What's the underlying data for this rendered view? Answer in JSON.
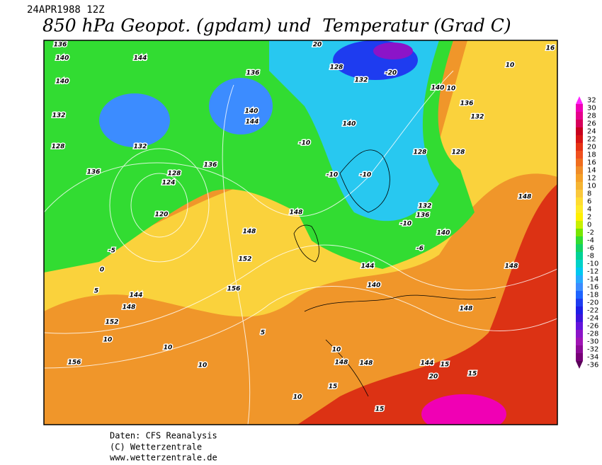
{
  "header": {
    "date": "24APR1988 12Z",
    "title": "850 hPa Geopot. (gpdam) und  Temperatur (Grad C)"
  },
  "colorbar": [
    {
      "value": 32,
      "color": "#ff28ff"
    },
    {
      "value": 30,
      "color": "#f000b4"
    },
    {
      "value": 28,
      "color": "#e6008c"
    },
    {
      "value": 26,
      "color": "#d7005a"
    },
    {
      "value": 24,
      "color": "#c8001e"
    },
    {
      "value": 22,
      "color": "#d71414"
    },
    {
      "value": 20,
      "color": "#e63214"
    },
    {
      "value": 18,
      "color": "#f0501e"
    },
    {
      "value": 16,
      "color": "#f06e1e"
    },
    {
      "value": 14,
      "color": "#f08c28"
    },
    {
      "value": 12,
      "color": "#f5a028"
    },
    {
      "value": 10,
      "color": "#f5b432"
    },
    {
      "value": 8,
      "color": "#fac83c"
    },
    {
      "value": 6,
      "color": "#ffdc32"
    },
    {
      "value": 4,
      "color": "#ffeb28"
    },
    {
      "value": 2,
      "color": "#fff000"
    },
    {
      "value": 0,
      "color": "#c8f000"
    },
    {
      "value": -2,
      "color": "#78e600"
    },
    {
      "value": -4,
      "color": "#32dc32"
    },
    {
      "value": -6,
      "color": "#14d264"
    },
    {
      "value": -8,
      "color": "#00d296"
    },
    {
      "value": -10,
      "color": "#00d2c8"
    },
    {
      "value": -12,
      "color": "#00c8f0"
    },
    {
      "value": -14,
      "color": "#28aaff"
    },
    {
      "value": -16,
      "color": "#3c8cff"
    },
    {
      "value": -18,
      "color": "#1e64ff"
    },
    {
      "value": -20,
      "color": "#1e3cf0"
    },
    {
      "value": -22,
      "color": "#1e1ee6"
    },
    {
      "value": -24,
      "color": "#3c14dc"
    },
    {
      "value": -26,
      "color": "#6414dc"
    },
    {
      "value": -28,
      "color": "#8c14c8"
    },
    {
      "value": -30,
      "color": "#a014b4"
    },
    {
      "value": -32,
      "color": "#8c0a96"
    },
    {
      "value": -34,
      "color": "#780078"
    },
    {
      "value": -36,
      "color": "#5a005a"
    }
  ],
  "map_labels": [
    "136",
    "140",
    "144",
    "140",
    "132",
    "128",
    "136",
    "132",
    "124",
    "120",
    "128",
    "136",
    "140",
    "144",
    "136",
    "20",
    "128",
    "132",
    "140",
    "-20",
    "140",
    "136",
    "132",
    "128",
    "128",
    "132",
    "136",
    "140",
    "144",
    "140",
    "148",
    "148",
    "152",
    "156",
    "144",
    "148",
    "152",
    "156",
    "148",
    "148",
    "144",
    "148",
    "148",
    "148",
    "10",
    "-10",
    "-10",
    "-10",
    "-10",
    "-6",
    "-5",
    "0",
    "5",
    "10",
    "10",
    "10",
    "5",
    "10",
    "15",
    "15",
    "15",
    "10",
    "15",
    "20",
    "10",
    "16"
  ],
  "footer": {
    "source": "Daten: CFS Reanalysis",
    "copyright": "(C) Wetterzentrale",
    "url": "www.wetterzentrale.de"
  }
}
